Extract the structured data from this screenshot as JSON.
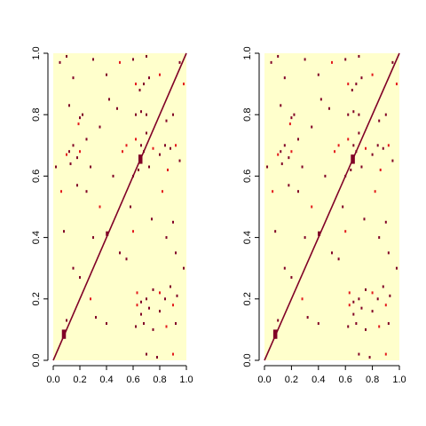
{
  "chart_data": [
    {
      "type": "heatmap",
      "xlim": [
        0,
        1
      ],
      "ylim": [
        0,
        1
      ],
      "x_ticks": [
        "0.0",
        "0.2",
        "0.4",
        "0.6",
        "0.8",
        "1.0"
      ],
      "y_ticks": [
        "0.0",
        "0.2",
        "0.4",
        "0.6",
        "0.8",
        "1.0"
      ],
      "background_color": "#FFFFCC",
      "cell_color": "#800026",
      "mid_color": "#E31A1C",
      "diagonal": {
        "from": [
          0,
          0
        ],
        "to": [
          1,
          1
        ]
      },
      "blocks": [
        {
          "x": [
            0.065,
            0.095
          ],
          "y": [
            0.07,
            0.1
          ]
        },
        {
          "x": [
            0.395,
            0.415
          ],
          "y": [
            0.405,
            0.42
          ]
        },
        {
          "x": [
            0.64,
            0.67
          ],
          "y": [
            0.64,
            0.67
          ]
        }
      ],
      "sparse_cells": [
        [
          0.1,
          0.67
        ],
        [
          0.12,
          0.68
        ],
        [
          0.13,
          0.64
        ],
        [
          0.18,
          0.66
        ],
        [
          0.2,
          0.68
        ],
        [
          0.15,
          0.7
        ],
        [
          0.2,
          0.79
        ],
        [
          0.22,
          0.8
        ],
        [
          0.19,
          0.77
        ],
        [
          0.12,
          0.83
        ],
        [
          0.25,
          0.72
        ],
        [
          0.28,
          0.63
        ],
        [
          0.62,
          0.9
        ],
        [
          0.65,
          0.88
        ],
        [
          0.68,
          0.9
        ],
        [
          0.72,
          0.92
        ],
        [
          0.8,
          0.93
        ],
        [
          0.62,
          0.8
        ],
        [
          0.66,
          0.81
        ],
        [
          0.7,
          0.8
        ],
        [
          0.62,
          0.72
        ],
        [
          0.66,
          0.7
        ],
        [
          0.7,
          0.74
        ],
        [
          0.68,
          0.68
        ],
        [
          0.75,
          0.69
        ],
        [
          0.8,
          0.67
        ],
        [
          0.84,
          0.7
        ],
        [
          0.88,
          0.69
        ],
        [
          0.92,
          0.7
        ],
        [
          0.95,
          0.65
        ],
        [
          0.85,
          0.78
        ],
        [
          0.9,
          0.8
        ],
        [
          0.86,
          0.62
        ],
        [
          0.64,
          0.62
        ],
        [
          0.72,
          0.63
        ],
        [
          0.6,
          0.6
        ],
        [
          0.63,
          0.22
        ],
        [
          0.66,
          0.19
        ],
        [
          0.7,
          0.2
        ],
        [
          0.75,
          0.23
        ],
        [
          0.8,
          0.22
        ],
        [
          0.84,
          0.2
        ],
        [
          0.88,
          0.24
        ],
        [
          0.93,
          0.21
        ],
        [
          0.63,
          0.18
        ],
        [
          0.66,
          0.15
        ],
        [
          0.72,
          0.17
        ],
        [
          0.8,
          0.16
        ],
        [
          0.9,
          0.18
        ],
        [
          0.62,
          0.11
        ],
        [
          0.68,
          0.12
        ],
        [
          0.75,
          0.1
        ],
        [
          0.85,
          0.11
        ],
        [
          0.92,
          0.12
        ],
        [
          0.7,
          0.02
        ],
        [
          0.78,
          0.01
        ],
        [
          0.9,
          0.02
        ],
        [
          0.05,
          0.97
        ],
        [
          0.1,
          0.99
        ],
        [
          0.3,
          0.98
        ],
        [
          0.5,
          0.97
        ],
        [
          0.7,
          0.99
        ],
        [
          0.15,
          0.92
        ],
        [
          0.4,
          0.93
        ],
        [
          0.55,
          0.7
        ],
        [
          0.45,
          0.6
        ],
        [
          0.3,
          0.4
        ],
        [
          0.5,
          0.35
        ],
        [
          0.35,
          0.5
        ],
        [
          0.85,
          0.4
        ],
        [
          0.9,
          0.45
        ],
        [
          0.92,
          0.35
        ],
        [
          0.6,
          0.42
        ],
        [
          0.98,
          0.3
        ],
        [
          0.32,
          0.14
        ],
        [
          0.55,
          0.33
        ],
        [
          0.06,
          0.55
        ],
        [
          0.02,
          0.63
        ],
        [
          0.25,
          0.55
        ],
        [
          0.6,
          0.98
        ],
        [
          0.82,
          0.55
        ],
        [
          0.74,
          0.46
        ],
        [
          0.15,
          0.3
        ],
        [
          0.2,
          0.27
        ],
        [
          0.28,
          0.2
        ],
        [
          0.1,
          0.13
        ],
        [
          0.4,
          0.12
        ],
        [
          0.95,
          0.97
        ],
        [
          0.98,
          0.9
        ],
        [
          0.42,
          0.85
        ],
        [
          0.48,
          0.82
        ],
        [
          0.35,
          0.76
        ],
        [
          0.52,
          0.68
        ],
        [
          0.58,
          0.5
        ],
        [
          0.18,
          0.57
        ],
        [
          0.08,
          0.42
        ]
      ]
    },
    {
      "type": "heatmap",
      "xlim": [
        0,
        1
      ],
      "ylim": [
        0,
        1
      ],
      "x_ticks": [
        "0.0",
        "0.2",
        "0.4",
        "0.6",
        "0.8",
        "1.0"
      ],
      "y_ticks": [
        "0.0",
        "0.2",
        "0.4",
        "0.6",
        "0.8",
        "1.0"
      ],
      "background_color": "#FFFFCC",
      "cell_color": "#800026",
      "mid_color": "#E31A1C",
      "diagonal": {
        "from": [
          0,
          0
        ],
        "to": [
          1,
          1
        ]
      },
      "blocks": [
        {
          "x": [
            0.065,
            0.095
          ],
          "y": [
            0.07,
            0.1
          ]
        },
        {
          "x": [
            0.395,
            0.415
          ],
          "y": [
            0.405,
            0.42
          ]
        },
        {
          "x": [
            0.64,
            0.67
          ],
          "y": [
            0.64,
            0.67
          ]
        }
      ],
      "sparse_cells": [
        [
          0.1,
          0.67
        ],
        [
          0.12,
          0.68
        ],
        [
          0.13,
          0.64
        ],
        [
          0.18,
          0.66
        ],
        [
          0.2,
          0.68
        ],
        [
          0.15,
          0.7
        ],
        [
          0.2,
          0.79
        ],
        [
          0.22,
          0.8
        ],
        [
          0.19,
          0.77
        ],
        [
          0.12,
          0.83
        ],
        [
          0.25,
          0.72
        ],
        [
          0.28,
          0.63
        ],
        [
          0.62,
          0.9
        ],
        [
          0.65,
          0.88
        ],
        [
          0.68,
          0.9
        ],
        [
          0.72,
          0.92
        ],
        [
          0.8,
          0.93
        ],
        [
          0.62,
          0.8
        ],
        [
          0.66,
          0.81
        ],
        [
          0.7,
          0.8
        ],
        [
          0.62,
          0.72
        ],
        [
          0.66,
          0.7
        ],
        [
          0.7,
          0.74
        ],
        [
          0.68,
          0.68
        ],
        [
          0.75,
          0.69
        ],
        [
          0.8,
          0.67
        ],
        [
          0.84,
          0.7
        ],
        [
          0.88,
          0.69
        ],
        [
          0.92,
          0.7
        ],
        [
          0.95,
          0.65
        ],
        [
          0.85,
          0.78
        ],
        [
          0.9,
          0.8
        ],
        [
          0.86,
          0.62
        ],
        [
          0.64,
          0.62
        ],
        [
          0.72,
          0.63
        ],
        [
          0.6,
          0.6
        ],
        [
          0.63,
          0.22
        ],
        [
          0.66,
          0.19
        ],
        [
          0.7,
          0.2
        ],
        [
          0.75,
          0.23
        ],
        [
          0.8,
          0.22
        ],
        [
          0.84,
          0.2
        ],
        [
          0.88,
          0.24
        ],
        [
          0.93,
          0.21
        ],
        [
          0.63,
          0.18
        ],
        [
          0.66,
          0.15
        ],
        [
          0.72,
          0.17
        ],
        [
          0.8,
          0.16
        ],
        [
          0.9,
          0.18
        ],
        [
          0.62,
          0.11
        ],
        [
          0.68,
          0.12
        ],
        [
          0.75,
          0.1
        ],
        [
          0.85,
          0.11
        ],
        [
          0.92,
          0.12
        ],
        [
          0.7,
          0.02
        ],
        [
          0.78,
          0.01
        ],
        [
          0.9,
          0.02
        ],
        [
          0.05,
          0.97
        ],
        [
          0.1,
          0.99
        ],
        [
          0.3,
          0.98
        ],
        [
          0.5,
          0.97
        ],
        [
          0.7,
          0.99
        ],
        [
          0.15,
          0.92
        ],
        [
          0.4,
          0.93
        ],
        [
          0.55,
          0.7
        ],
        [
          0.45,
          0.6
        ],
        [
          0.3,
          0.4
        ],
        [
          0.5,
          0.35
        ],
        [
          0.35,
          0.5
        ],
        [
          0.85,
          0.4
        ],
        [
          0.9,
          0.45
        ],
        [
          0.92,
          0.35
        ],
        [
          0.6,
          0.42
        ],
        [
          0.98,
          0.3
        ],
        [
          0.32,
          0.14
        ],
        [
          0.55,
          0.33
        ],
        [
          0.06,
          0.55
        ],
        [
          0.02,
          0.63
        ],
        [
          0.25,
          0.55
        ],
        [
          0.6,
          0.98
        ],
        [
          0.82,
          0.55
        ],
        [
          0.74,
          0.46
        ],
        [
          0.15,
          0.3
        ],
        [
          0.2,
          0.27
        ],
        [
          0.28,
          0.2
        ],
        [
          0.1,
          0.13
        ],
        [
          0.4,
          0.12
        ],
        [
          0.95,
          0.97
        ],
        [
          0.98,
          0.9
        ],
        [
          0.42,
          0.85
        ],
        [
          0.48,
          0.82
        ],
        [
          0.35,
          0.76
        ],
        [
          0.52,
          0.68
        ],
        [
          0.58,
          0.5
        ],
        [
          0.18,
          0.57
        ],
        [
          0.08,
          0.42
        ]
      ]
    }
  ]
}
